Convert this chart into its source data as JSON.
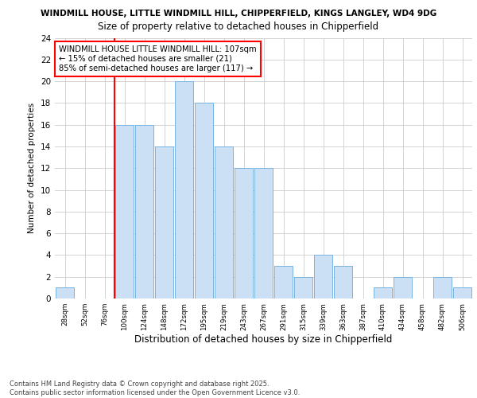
{
  "title_line1": "WINDMILL HOUSE, LITTLE WINDMILL HILL, CHIPPERFIELD, KINGS LANGLEY, WD4 9DG",
  "title_line2": "Size of property relative to detached houses in Chipperfield",
  "xlabel": "Distribution of detached houses by size in Chipperfield",
  "ylabel": "Number of detached properties",
  "categories": [
    "28sqm",
    "52sqm",
    "76sqm",
    "100sqm",
    "124sqm",
    "148sqm",
    "172sqm",
    "195sqm",
    "219sqm",
    "243sqm",
    "267sqm",
    "291sqm",
    "315sqm",
    "339sqm",
    "363sqm",
    "387sqm",
    "410sqm",
    "434sqm",
    "458sqm",
    "482sqm",
    "506sqm"
  ],
  "values": [
    1,
    0,
    0,
    16,
    16,
    14,
    20,
    18,
    14,
    12,
    12,
    3,
    2,
    4,
    3,
    0,
    1,
    2,
    0,
    2,
    1
  ],
  "bar_color": "#cce0f5",
  "bar_edge_color": "#7ab4e0",
  "ylim": [
    0,
    24
  ],
  "yticks": [
    0,
    2,
    4,
    6,
    8,
    10,
    12,
    14,
    16,
    18,
    20,
    22,
    24
  ],
  "annotation_text": "WINDMILL HOUSE LITTLE WINDMILL HILL: 107sqm\n← 15% of detached houses are smaller (21)\n85% of semi-detached houses are larger (117) →",
  "footnote": "Contains HM Land Registry data © Crown copyright and database right 2025.\nContains public sector information licensed under the Open Government Licence v3.0.",
  "bg_color": "#ffffff",
  "grid_color": "#cccccc",
  "red_line_index": 3
}
